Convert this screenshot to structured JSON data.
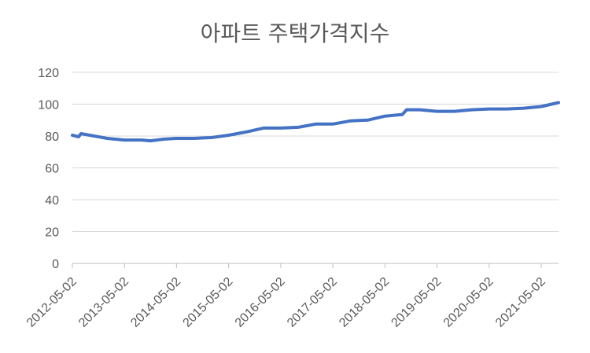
{
  "chart_data": {
    "type": "line",
    "title": "아파트 주택가격지수",
    "xlabel": "",
    "ylabel": "",
    "ylim": [
      0,
      120
    ],
    "yticks": [
      0,
      20,
      40,
      60,
      80,
      100,
      120
    ],
    "xticks": [
      "2012-05-02",
      "2013-05-02",
      "2014-05-02",
      "2015-05-02",
      "2016-05-02",
      "2017-05-02",
      "2018-05-02",
      "2019-05-02",
      "2020-05-02",
      "2021-05-02"
    ],
    "xlim": [
      "2012-05-02",
      "2021-08-31"
    ],
    "grid": true,
    "legend": "none",
    "series": [
      {
        "color": "#4472c4",
        "x": [
          "2012-05-02",
          "2012-06-15",
          "2012-07-01",
          "2012-08-01",
          "2012-10-01",
          "2013-01-01",
          "2013-05-02",
          "2013-09-01",
          "2013-11-01",
          "2014-02-01",
          "2014-05-02",
          "2014-09-01",
          "2015-01-01",
          "2015-05-02",
          "2015-09-01",
          "2016-01-01",
          "2016-05-02",
          "2016-09-01",
          "2017-01-01",
          "2017-05-02",
          "2017-09-01",
          "2018-01-01",
          "2018-05-02",
          "2018-09-01",
          "2018-10-01",
          "2019-01-01",
          "2019-05-02",
          "2019-09-01",
          "2020-01-01",
          "2020-05-02",
          "2020-09-01",
          "2021-01-01",
          "2021-05-02",
          "2021-08-31"
        ],
        "y": [
          80.5,
          79.5,
          81.5,
          81,
          80,
          78.5,
          77.5,
          77.5,
          77,
          78,
          78.5,
          78.5,
          79,
          80.5,
          82.5,
          85,
          85,
          85.5,
          87.5,
          87.5,
          89.5,
          90,
          92.5,
          93.5,
          96.5,
          96.5,
          95.5,
          95.5,
          96.5,
          97,
          97,
          97.5,
          98.5,
          101
        ]
      }
    ]
  }
}
